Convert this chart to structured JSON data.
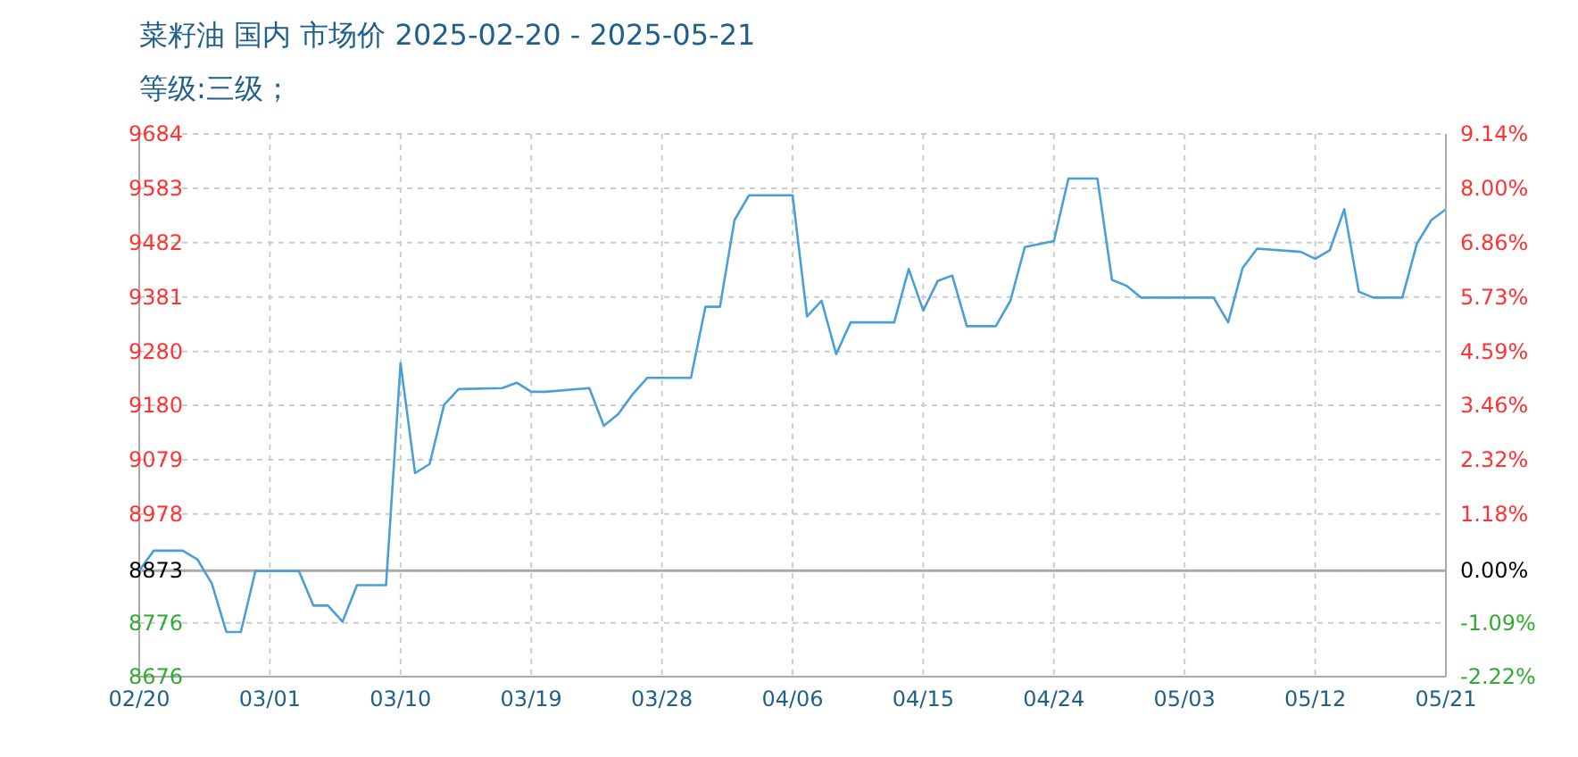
{
  "chart_data": {
    "type": "line",
    "title": "菜籽油 国内 市场价 2025-02-20 - 2025-05-21",
    "subtitle": "等级:三级；",
    "x": [
      "2025-02-20",
      "2025-02-21",
      "2025-02-23",
      "2025-02-24",
      "2025-02-25",
      "2025-02-26",
      "2025-02-27",
      "2025-02-28",
      "2025-03-03",
      "2025-03-04",
      "2025-03-05",
      "2025-03-06",
      "2025-03-07",
      "2025-03-09",
      "2025-03-10",
      "2025-03-11",
      "2025-03-12",
      "2025-03-13",
      "2025-03-14",
      "2025-03-17",
      "2025-03-18",
      "2025-03-19",
      "2025-03-20",
      "2025-03-23",
      "2025-03-24",
      "2025-03-25",
      "2025-03-26",
      "2025-03-27",
      "2025-03-30",
      "2025-03-31",
      "2025-04-01",
      "2025-04-02",
      "2025-04-03",
      "2025-04-06",
      "2025-04-07",
      "2025-04-08",
      "2025-04-09",
      "2025-04-10",
      "2025-04-13",
      "2025-04-14",
      "2025-04-15",
      "2025-04-16",
      "2025-04-17",
      "2025-04-18",
      "2025-04-20",
      "2025-04-21",
      "2025-04-22",
      "2025-04-24",
      "2025-04-25",
      "2025-04-27",
      "2025-04-28",
      "2025-04-29",
      "2025-04-30",
      "2025-05-05",
      "2025-05-06",
      "2025-05-07",
      "2025-05-08",
      "2025-05-11",
      "2025-05-12",
      "2025-05-13",
      "2025-05-14",
      "2025-05-15",
      "2025-05-16",
      "2025-05-18",
      "2025-05-19",
      "2025-05-20",
      "2025-05-21"
    ],
    "series": [
      {
        "color": "#4a9fd8",
        "values": [
          8873,
          8910,
          8910,
          8894,
          8849,
          8759,
          8759,
          8872,
          8872,
          8808,
          8808,
          8778,
          8846,
          8846,
          9258,
          9054,
          9071,
          9181,
          9210,
          9212,
          9222,
          9205,
          9205,
          9212,
          9142,
          9164,
          9201,
          9231,
          9231,
          9363,
          9363,
          9524,
          9570,
          9570,
          9345,
          9374,
          9275,
          9334,
          9334,
          9433,
          9356,
          9411,
          9421,
          9327,
          9327,
          9374,
          9474,
          9485,
          9601,
          9601,
          9413,
          9402,
          9380,
          9380,
          9334,
          9435,
          9471,
          9465,
          9452,
          9468,
          9544,
          9391,
          9380,
          9380,
          9480,
          9524,
          9544
        ]
      }
    ],
    "xlim": [
      "2025-02-20",
      "2025-05-21"
    ],
    "xticks": [
      {
        "value": "2025-02-20",
        "label": "02/20"
      },
      {
        "value": "2025-03-01",
        "label": "03/01"
      },
      {
        "value": "2025-03-10",
        "label": "03/10"
      },
      {
        "value": "2025-03-19",
        "label": "03/19"
      },
      {
        "value": "2025-03-28",
        "label": "03/28"
      },
      {
        "value": "2025-04-06",
        "label": "04/06"
      },
      {
        "value": "2025-04-15",
        "label": "04/15"
      },
      {
        "value": "2025-04-24",
        "label": "04/24"
      },
      {
        "value": "2025-05-03",
        "label": "05/03"
      },
      {
        "value": "2025-05-12",
        "label": "05/12"
      },
      {
        "value": "2025-05-21",
        "label": "05/21"
      }
    ],
    "ylim": [
      8676,
      9684
    ],
    "yticks": [
      8676,
      8776,
      8873,
      8978,
      9079,
      9180,
      9280,
      9381,
      9482,
      9583,
      9684
    ],
    "y2lim": [
      -2.22,
      9.14
    ],
    "y2ticks": [
      {
        "value": -2.22,
        "label": "-2.22%"
      },
      {
        "value": -1.09,
        "label": "-1.09%"
      },
      {
        "value": 0,
        "label": "0.00%"
      },
      {
        "value": 1.18,
        "label": "1.18%"
      },
      {
        "value": 2.32,
        "label": "2.32%"
      },
      {
        "value": 3.46,
        "label": "3.46%"
      },
      {
        "value": 4.59,
        "label": "4.59%"
      },
      {
        "value": 5.73,
        "label": "5.73%"
      },
      {
        "value": 6.86,
        "label": "6.86%"
      },
      {
        "value": 8.0,
        "label": "8.00%"
      },
      {
        "value": 9.14,
        "label": "9.14%"
      }
    ],
    "ref_lines": [
      {
        "axis": "y",
        "value": 8873,
        "color": "#aaaaaa"
      }
    ],
    "grid": true,
    "marker": "none",
    "line_style": "solid"
  }
}
